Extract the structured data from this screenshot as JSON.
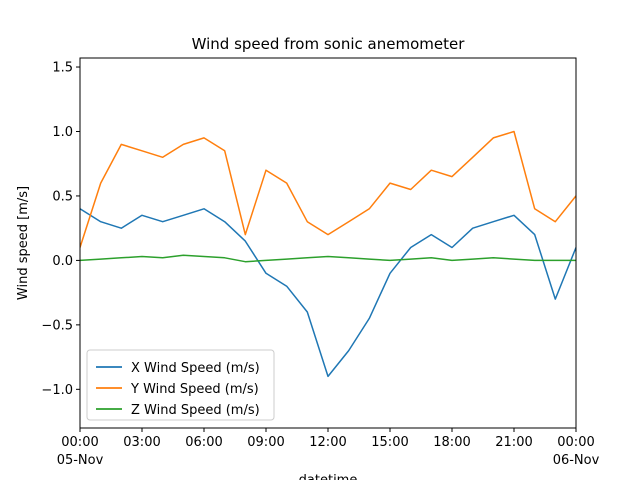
{
  "chart_data": {
    "type": "line",
    "title": "Wind speed from sonic anemometer",
    "xlabel": "datetime",
    "ylabel": "Wind speed [m/s]",
    "xlim": [
      "2019-11-05 00:00",
      "2019-11-06 00:00"
    ],
    "ylim": [
      -1.3,
      1.57
    ],
    "x_ticks": [
      {
        "value": "2019-11-05 00:00",
        "label": "00:00",
        "sublabel": "05-Nov"
      },
      {
        "value": "2019-11-05 03:00",
        "label": "03:00",
        "sublabel": ""
      },
      {
        "value": "2019-11-05 06:00",
        "label": "06:00",
        "sublabel": ""
      },
      {
        "value": "2019-11-05 09:00",
        "label": "09:00",
        "sublabel": ""
      },
      {
        "value": "2019-11-05 12:00",
        "label": "12:00",
        "sublabel": ""
      },
      {
        "value": "2019-11-05 15:00",
        "label": "15:00",
        "sublabel": ""
      },
      {
        "value": "2019-11-05 18:00",
        "label": "18:00",
        "sublabel": ""
      },
      {
        "value": "2019-11-05 21:00",
        "label": "21:00",
        "sublabel": ""
      },
      {
        "value": "2019-11-06 00:00",
        "label": "00:00",
        "sublabel": "06-Nov"
      }
    ],
    "y_ticks": [
      {
        "value": -1.0,
        "label": "−1.0"
      },
      {
        "value": -0.5,
        "label": "−0.5"
      },
      {
        "value": 0.0,
        "label": "0.0"
      },
      {
        "value": 0.5,
        "label": "0.5"
      },
      {
        "value": 1.0,
        "label": "1.0"
      },
      {
        "value": 1.5,
        "label": "1.5"
      }
    ],
    "grid": false,
    "legend_position": "lower-left",
    "series": [
      {
        "name": "X Wind Speed (m/s)",
        "color": "#1f77b4",
        "x": [
          "2019-11-05 00:00",
          "2019-11-05 01:00",
          "2019-11-05 02:00",
          "2019-11-05 03:00",
          "2019-11-05 04:00",
          "2019-11-05 05:00",
          "2019-11-05 06:00",
          "2019-11-05 07:00",
          "2019-11-05 08:00",
          "2019-11-05 09:00",
          "2019-11-05 10:00",
          "2019-11-05 11:00",
          "2019-11-05 12:00",
          "2019-11-05 13:00",
          "2019-11-05 14:00",
          "2019-11-05 15:00",
          "2019-11-05 16:00",
          "2019-11-05 17:00",
          "2019-11-05 18:00",
          "2019-11-05 19:00",
          "2019-11-05 20:00",
          "2019-11-05 21:00",
          "2019-11-05 22:00",
          "2019-11-05 23:00",
          "2019-11-06 00:00"
        ],
        "y": [
          0.4,
          0.3,
          0.25,
          0.35,
          0.3,
          0.35,
          0.4,
          0.3,
          0.15,
          -0.1,
          -0.2,
          -0.4,
          -0.9,
          -0.7,
          -0.45,
          -0.1,
          0.1,
          0.2,
          0.1,
          0.25,
          0.3,
          0.35,
          0.2,
          -0.3,
          0.1
        ]
      },
      {
        "name": "Y Wind Speed (m/s)",
        "color": "#ff7f0e",
        "x": [
          "2019-11-05 00:00",
          "2019-11-05 01:00",
          "2019-11-05 02:00",
          "2019-11-05 03:00",
          "2019-11-05 04:00",
          "2019-11-05 05:00",
          "2019-11-05 06:00",
          "2019-11-05 07:00",
          "2019-11-05 08:00",
          "2019-11-05 09:00",
          "2019-11-05 10:00",
          "2019-11-05 11:00",
          "2019-11-05 12:00",
          "2019-11-05 13:00",
          "2019-11-05 14:00",
          "2019-11-05 15:00",
          "2019-11-05 16:00",
          "2019-11-05 17:00",
          "2019-11-05 18:00",
          "2019-11-05 19:00",
          "2019-11-05 20:00",
          "2019-11-05 21:00",
          "2019-11-05 22:00",
          "2019-11-05 23:00",
          "2019-11-06 00:00"
        ],
        "y": [
          0.1,
          0.6,
          0.9,
          0.85,
          0.8,
          0.9,
          0.95,
          0.85,
          0.2,
          0.7,
          0.6,
          0.3,
          0.2,
          0.3,
          0.4,
          0.6,
          0.55,
          0.7,
          0.65,
          0.8,
          0.95,
          1.0,
          0.4,
          0.3,
          0.5
        ]
      },
      {
        "name": "Z Wind Speed (m/s)",
        "color": "#2ca02c",
        "x": [
          "2019-11-05 00:00",
          "2019-11-05 01:00",
          "2019-11-05 02:00",
          "2019-11-05 03:00",
          "2019-11-05 04:00",
          "2019-11-05 05:00",
          "2019-11-05 06:00",
          "2019-11-05 07:00",
          "2019-11-05 08:00",
          "2019-11-05 09:00",
          "2019-11-05 10:00",
          "2019-11-05 11:00",
          "2019-11-05 12:00",
          "2019-11-05 13:00",
          "2019-11-05 14:00",
          "2019-11-05 15:00",
          "2019-11-05 16:00",
          "2019-11-05 17:00",
          "2019-11-05 18:00",
          "2019-11-05 19:00",
          "2019-11-05 20:00",
          "2019-11-05 21:00",
          "2019-11-05 22:00",
          "2019-11-05 23:00",
          "2019-11-06 00:00"
        ],
        "y": [
          0.0,
          0.01,
          0.02,
          0.03,
          0.02,
          0.04,
          0.03,
          0.02,
          -0.01,
          0.0,
          0.01,
          0.02,
          0.03,
          0.02,
          0.01,
          0.0,
          0.01,
          0.02,
          0.0,
          0.01,
          0.02,
          0.01,
          0.0,
          0.0,
          0.0
        ]
      }
    ]
  }
}
